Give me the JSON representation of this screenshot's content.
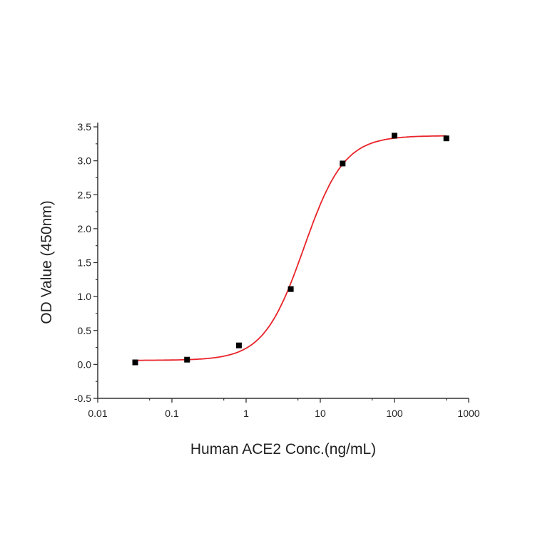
{
  "chart_data": {
    "type": "scatter",
    "title": "",
    "xlabel": "Human ACE2 Conc.(ng/mL)",
    "ylabel": "OD Value (450nm)",
    "x_scale": "log",
    "xlim": [
      0.01,
      1000
    ],
    "ylim": [
      -0.5,
      3.5
    ],
    "x_ticks": [
      "0.01",
      "0.1",
      "1",
      "10",
      "100",
      "1000"
    ],
    "y_ticks": [
      "-0.5",
      "0.0",
      "0.5",
      "1.0",
      "1.5",
      "2.0",
      "2.5",
      "3.0",
      "3.5"
    ],
    "grid": false,
    "points": {
      "x": [
        0.032,
        0.16,
        0.8,
        4,
        20,
        100,
        500
      ],
      "y": [
        0.03,
        0.07,
        0.28,
        1.11,
        2.96,
        3.37,
        3.33
      ],
      "color": "#000000",
      "marker": "square"
    },
    "fit": {
      "type": "4PL",
      "bottom": 0.06,
      "top": 3.37,
      "ec50": 6,
      "hill": 1.6,
      "color": "#e8242a"
    }
  }
}
